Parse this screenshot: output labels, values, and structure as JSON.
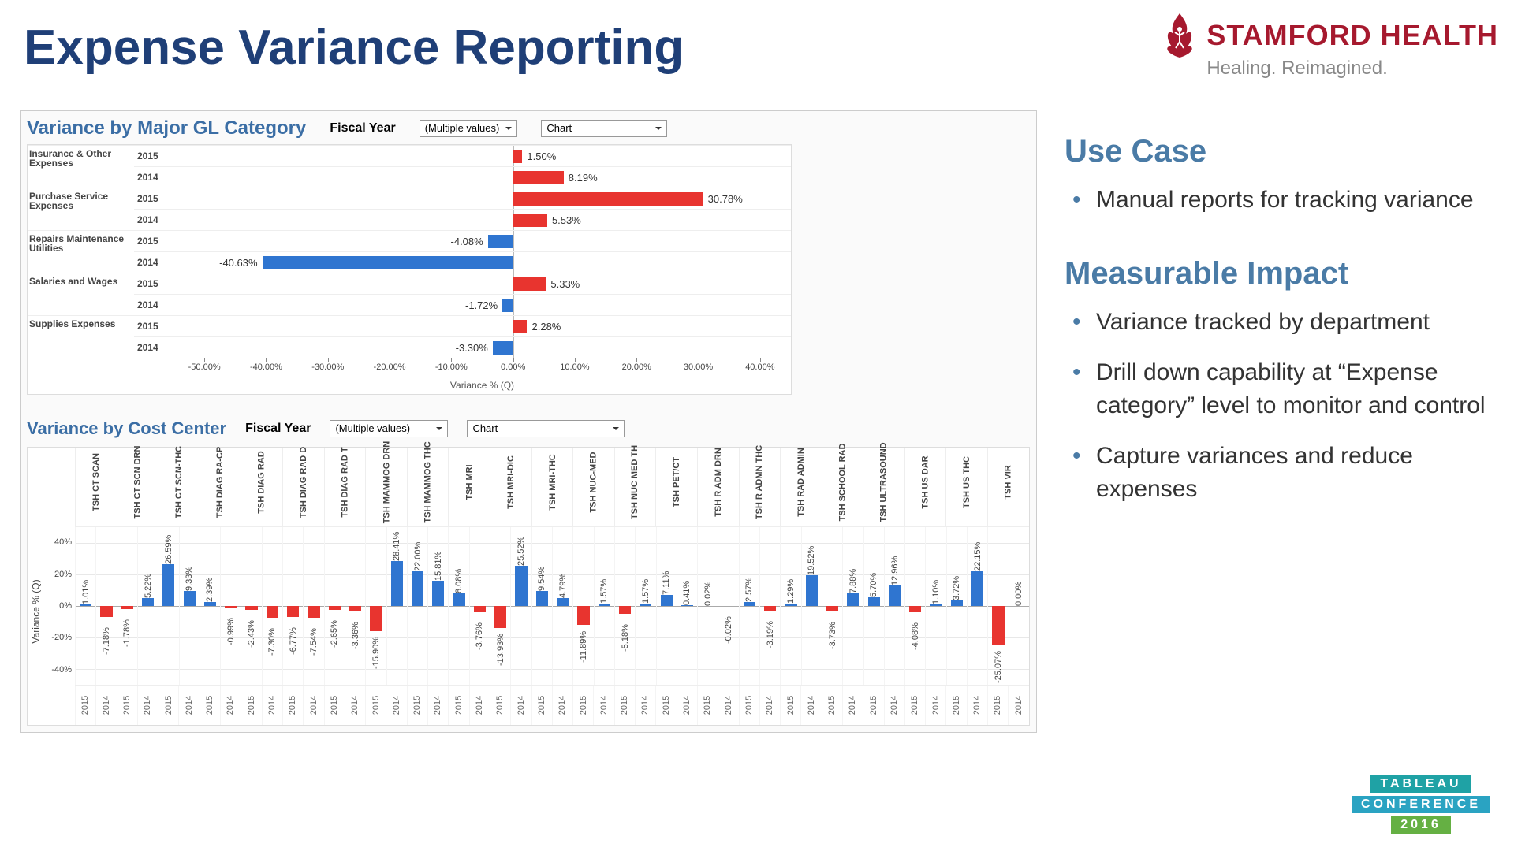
{
  "page": {
    "title": "Expense Variance Reporting"
  },
  "brand": {
    "name1": "STAMFORD",
    "name2": "HEALTH",
    "tagline": "Healing. Reimagined.",
    "red": "#a6192e",
    "gray": "#888888"
  },
  "chart1": {
    "title": "Variance by Major GL Category",
    "filter_label": "Fiscal Year",
    "filter_value": "(Multiple values)",
    "view_value": "Chart",
    "axis_title": "Variance % (Q)",
    "xmin": -55,
    "xmax": 45,
    "ticks": [
      -50,
      -40,
      -30,
      -20,
      -10,
      0,
      10,
      20,
      30,
      40
    ],
    "tick_fmt_suffix": "%",
    "pos_color": "#e8342f",
    "neg_color": "#2f75d0",
    "rows": [
      {
        "category": "Insurance & Other Expenses",
        "year": "2015",
        "value": 1.5,
        "showcat": true
      },
      {
        "category": "",
        "year": "2014",
        "value": 8.19
      },
      {
        "category": "Purchase Service Expenses",
        "year": "2015",
        "value": 30.78,
        "showcat": true
      },
      {
        "category": "",
        "year": "2014",
        "value": 5.53
      },
      {
        "category": "Repairs Maintenance Utilities",
        "year": "2015",
        "value": -4.08,
        "showcat": true
      },
      {
        "category": "",
        "year": "2014",
        "value": -40.63
      },
      {
        "category": "Salaries and Wages",
        "year": "2015",
        "value": 5.33,
        "showcat": true
      },
      {
        "category": "",
        "year": "2014",
        "value": -1.72
      },
      {
        "category": "Supplies Expenses",
        "year": "2015",
        "value": 2.28,
        "showcat": true
      },
      {
        "category": "",
        "year": "2014",
        "value": -3.3
      }
    ]
  },
  "chart2": {
    "title": "Variance by Cost Center",
    "filter_label": "Fiscal Year",
    "filter_value": "(Multiple values)",
    "view_value": "Chart",
    "y_axis_title": "Variance % (Q)",
    "ymin": -50,
    "ymax": 50,
    "yticks": [
      -40,
      -20,
      0,
      20,
      40
    ],
    "pos_color": "#2f75d0",
    "neg_color": "#e8342f",
    "categories": [
      {
        "label": "TSH CT SCAN",
        "bars": [
          {
            "year": "2015",
            "value": 1.01
          },
          {
            "year": "2014",
            "value": -7.18
          }
        ]
      },
      {
        "label": "TSH CT SCN DRN",
        "bars": [
          {
            "year": "2015",
            "value": -1.78
          },
          {
            "year": "2014",
            "value": 5.22
          }
        ]
      },
      {
        "label": "TSH CT SCN-THC",
        "bars": [
          {
            "year": "2015",
            "value": 26.59
          },
          {
            "year": "2014",
            "value": 9.33
          }
        ]
      },
      {
        "label": "TSH DIAG RA-CP",
        "bars": [
          {
            "year": "2015",
            "value": 2.39
          },
          {
            "year": "2014",
            "value": -0.99
          }
        ]
      },
      {
        "label": "TSH DIAG RAD",
        "bars": [
          {
            "year": "2015",
            "value": -2.43
          },
          {
            "year": "2014",
            "value": -7.3
          }
        ]
      },
      {
        "label": "TSH DIAG RAD D",
        "bars": [
          {
            "year": "2015",
            "value": -6.77
          },
          {
            "year": "2014",
            "value": -7.54
          }
        ]
      },
      {
        "label": "TSH DIAG RAD T",
        "bars": [
          {
            "year": "2015",
            "value": -2.65
          },
          {
            "year": "2014",
            "value": -3.36
          }
        ]
      },
      {
        "label": "TSH MAMMOG DRN",
        "bars": [
          {
            "year": "2015",
            "value": -15.9
          },
          {
            "year": "2014",
            "value": 28.41
          }
        ]
      },
      {
        "label": "TSH MAMMOG THC",
        "bars": [
          {
            "year": "2015",
            "value": 22.0
          },
          {
            "year": "2014",
            "value": 15.81
          }
        ]
      },
      {
        "label": "TSH MRI",
        "bars": [
          {
            "year": "2015",
            "value": 8.08
          },
          {
            "year": "2014",
            "value": -3.76
          }
        ]
      },
      {
        "label": "TSH MRI-DIC",
        "bars": [
          {
            "year": "2015",
            "value": -13.93
          },
          {
            "year": "2014",
            "value": 25.52
          }
        ]
      },
      {
        "label": "TSH MRI-THC",
        "bars": [
          {
            "year": "2015",
            "value": 9.54
          },
          {
            "year": "2014",
            "value": 4.79
          }
        ]
      },
      {
        "label": "TSH NUC-MED",
        "bars": [
          {
            "year": "2015",
            "value": -11.89
          },
          {
            "year": "2014",
            "value": 1.57
          }
        ]
      },
      {
        "label": "TSH NUC MED TH",
        "bars": [
          {
            "year": "2015",
            "value": -5.18
          },
          {
            "year": "2014",
            "value": 1.57
          }
        ]
      },
      {
        "label": "TSH PET/CT",
        "bars": [
          {
            "year": "2015",
            "value": 7.11
          },
          {
            "year": "2014",
            "value": 0.41
          }
        ]
      },
      {
        "label": "TSH R ADM DRN",
        "bars": [
          {
            "year": "2015",
            "value": 0.02
          },
          {
            "year": "2014",
            "value": -0.02
          }
        ]
      },
      {
        "label": "TSH R ADMN THC",
        "bars": [
          {
            "year": "2015",
            "value": 2.57
          },
          {
            "year": "2014",
            "value": -3.19
          }
        ]
      },
      {
        "label": "TSH RAD ADMIN",
        "bars": [
          {
            "year": "2015",
            "value": 1.29
          },
          {
            "year": "2014",
            "value": 19.52
          }
        ]
      },
      {
        "label": "TSH SCHOOL RAD",
        "bars": [
          {
            "year": "2015",
            "value": -3.73
          },
          {
            "year": "2014",
            "value": 7.88
          }
        ]
      },
      {
        "label": "TSH ULTRASOUND",
        "bars": [
          {
            "year": "2015",
            "value": 5.7
          },
          {
            "year": "2014",
            "value": 12.96
          }
        ]
      },
      {
        "label": "TSH US DAR",
        "bars": [
          {
            "year": "2015",
            "value": -4.08
          },
          {
            "year": "2014",
            "value": 1.1
          }
        ]
      },
      {
        "label": "TSH US THC",
        "bars": [
          {
            "year": "2015",
            "value": 3.72
          },
          {
            "year": "2014",
            "value": 22.15
          }
        ]
      },
      {
        "label": "TSH VIR",
        "bars": [
          {
            "year": "2015",
            "value": -25.07
          },
          {
            "year": "2014",
            "value": 0
          }
        ]
      }
    ]
  },
  "right": {
    "usecase_h": "Use Case",
    "usecase_items": [
      "Manual reports for tracking variance"
    ],
    "impact_h": "Measurable Impact",
    "impact_items": [
      "Variance tracked by department",
      "Drill down capability at “Expense category” level to monitor and control",
      "Capture variances and reduce expenses"
    ]
  },
  "badge": {
    "line1": "TABLEAU",
    "line2": "CONFERENCE",
    "line3": "2016",
    "c1": "#1fa2a5",
    "c2": "#2aa3c2",
    "c3": "#65b043"
  }
}
